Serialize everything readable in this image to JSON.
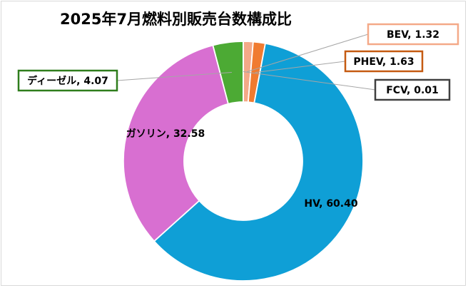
{
  "chart_data": {
    "type": "pie",
    "variant": "donut",
    "title": "2025年7月燃料別販売台数構成比",
    "start": "top, clockwise",
    "legend": "none",
    "slices": [
      {
        "name": "BEV",
        "value": 1.32,
        "label": "BEV, 1.32",
        "color": "#f4a988",
        "label_box_color": "#f4a988"
      },
      {
        "name": "PHEV",
        "value": 1.63,
        "label": "PHEV, 1.63",
        "color": "#f07b30",
        "label_box_color": "#c55a11"
      },
      {
        "name": "HV",
        "value": 60.4,
        "label": "HV, 60.40",
        "color": "#0f9fd6",
        "label_box_color": null
      },
      {
        "name": "ガソリン",
        "value": 32.58,
        "label": "ガソリン, 32.58",
        "color": "#d86fd1",
        "label_box_color": null
      },
      {
        "name": "ディーゼル",
        "value": 4.07,
        "label": "ディーゼル, 4.07",
        "color": "#4caa34",
        "label_box_color": "#2f7d1c"
      },
      {
        "name": "FCV",
        "value": 0.01,
        "label": "FCV, 0.01",
        "color": "#0f9fd6",
        "label_box_color": "#404040"
      }
    ]
  }
}
